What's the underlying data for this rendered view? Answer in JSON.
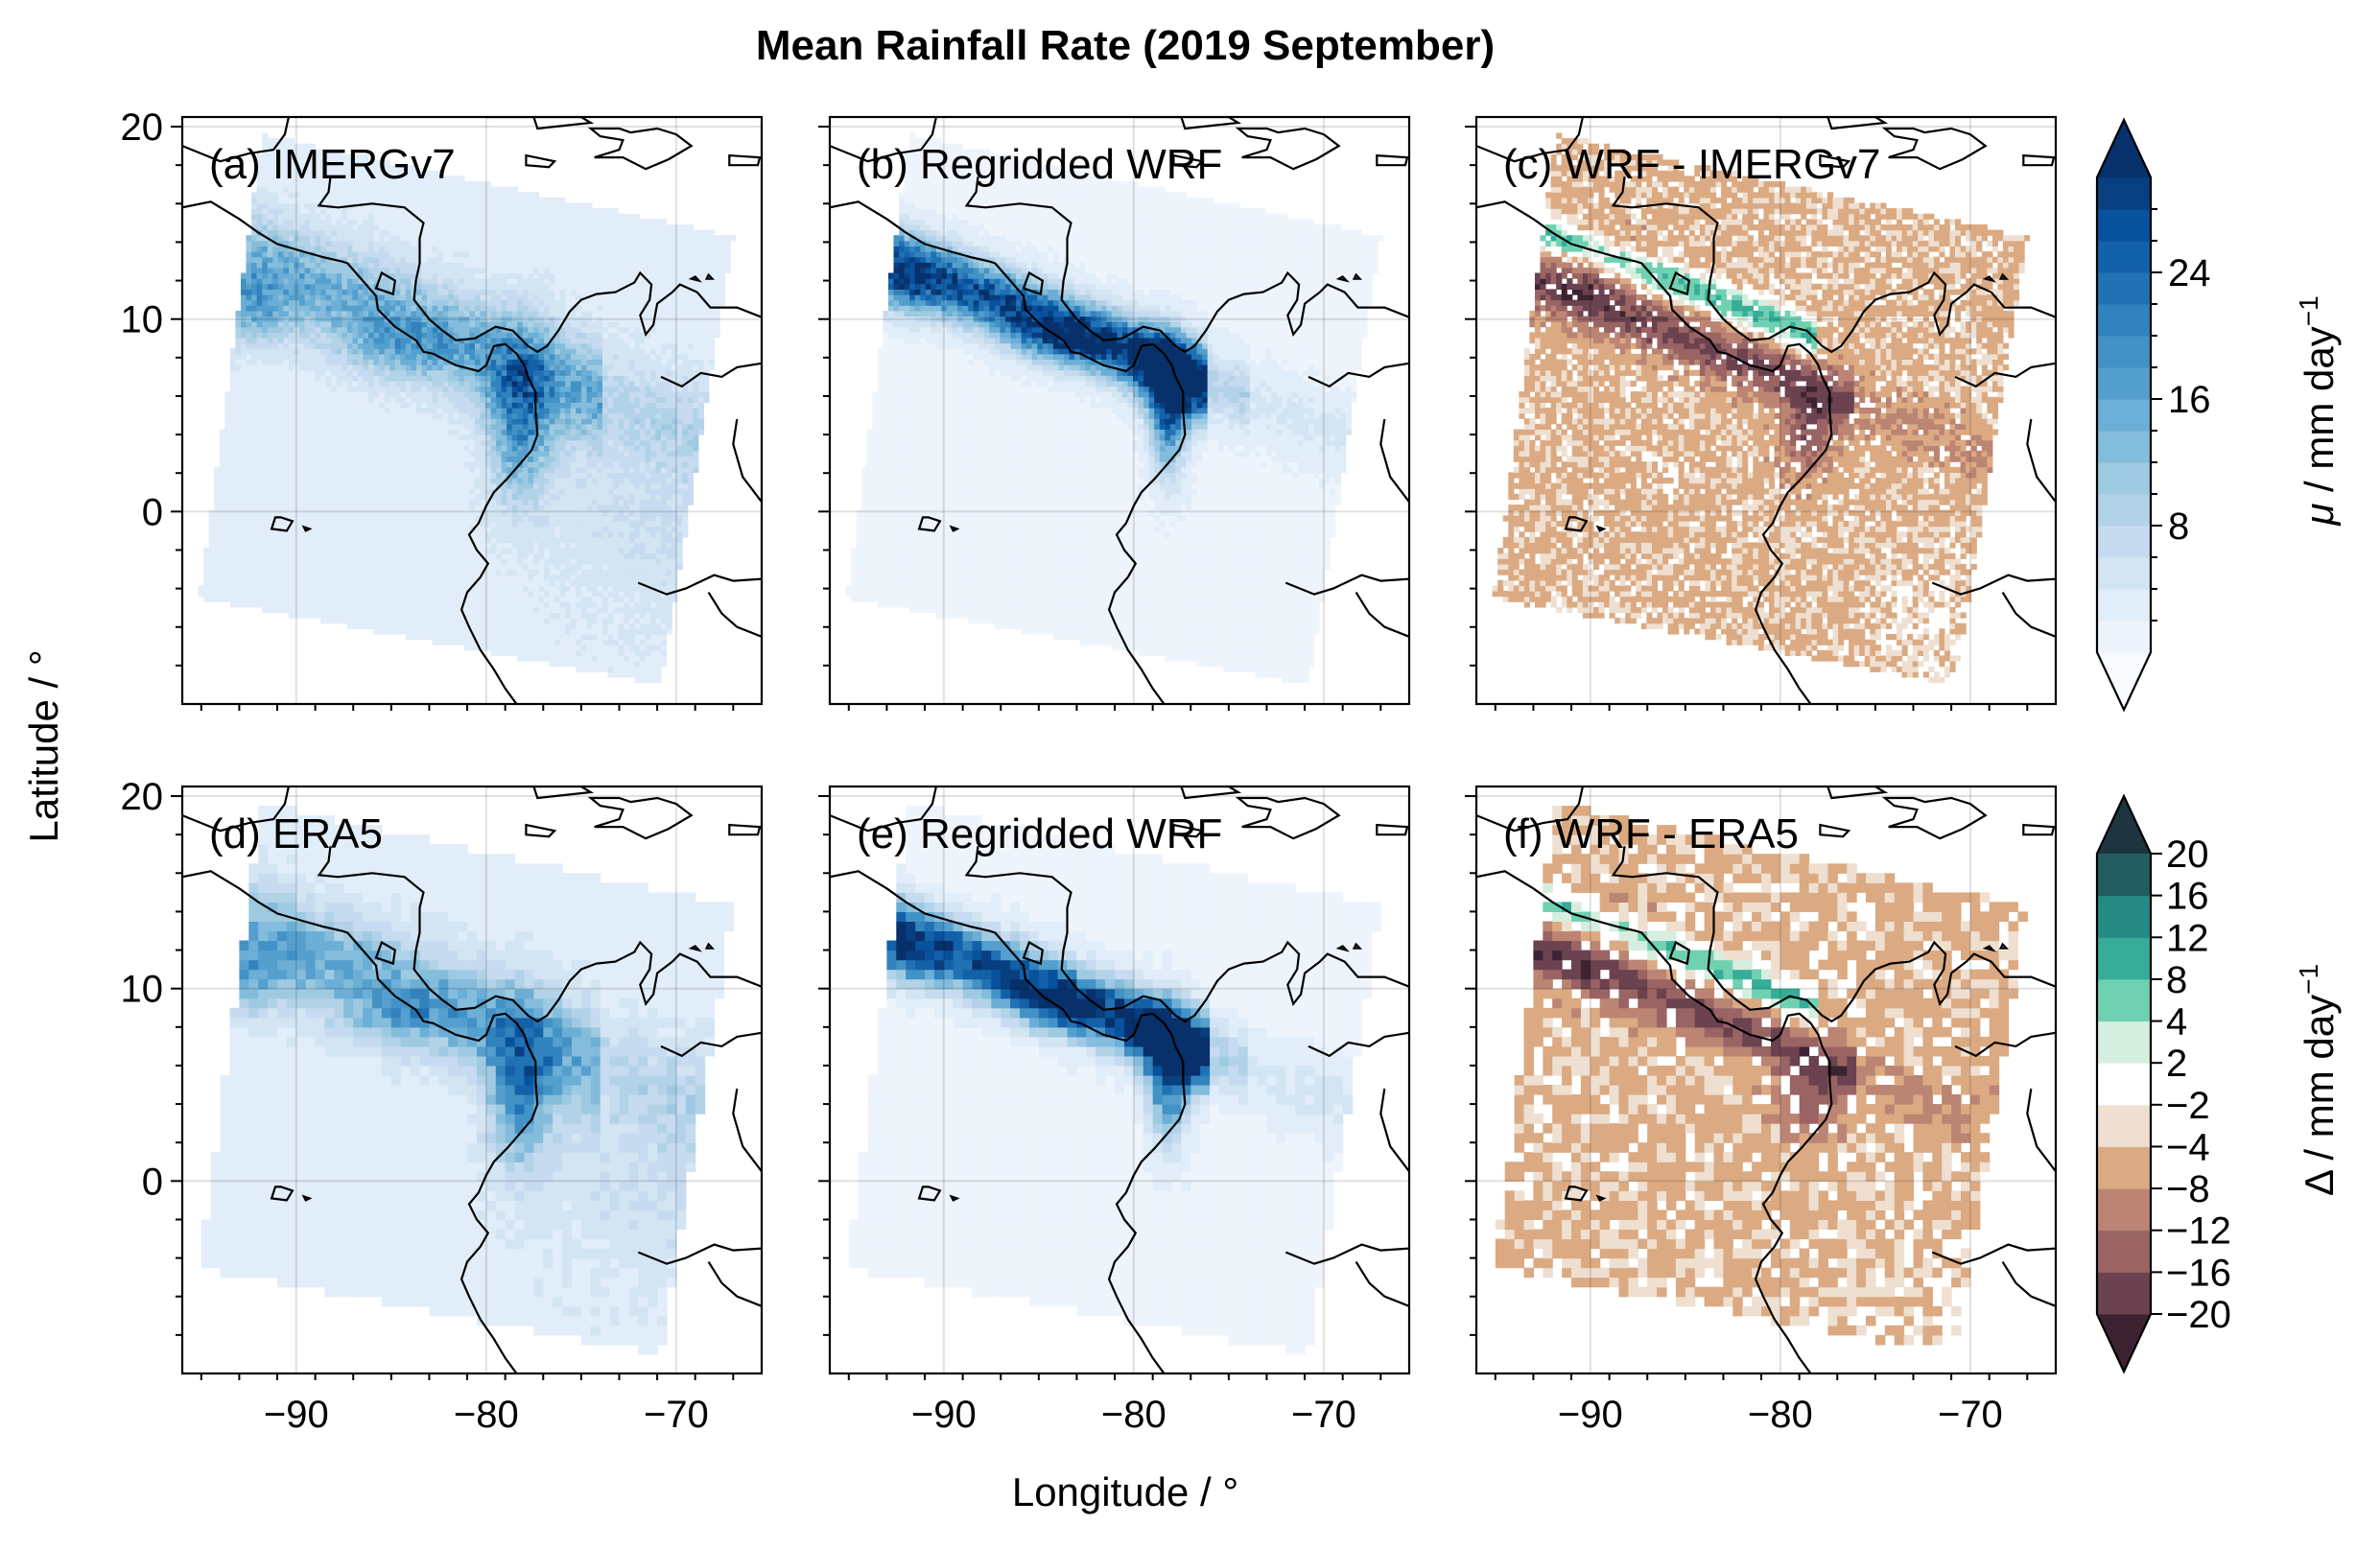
{
  "figure": {
    "title": "Mean Rainfall Rate (2019 September)",
    "xlabel": "Longitude / °",
    "ylabel": "Latitude / °"
  },
  "chart_data": {
    "type": "heatmap",
    "title": "Mean Rainfall Rate (2019 September)",
    "xlabel": "Longitude / °",
    "ylabel": "Latitude / °",
    "xlim": [
      -96,
      -65.5
    ],
    "ylim": [
      -10,
      20.5
    ],
    "x_ticks": [
      -90,
      -80,
      -70
    ],
    "x_tick_labels": [
      "−90",
      "−80",
      "−70"
    ],
    "y_ticks": [
      0,
      10,
      20
    ],
    "y_tick_labels": [
      "0",
      "10",
      "20"
    ],
    "grid": true,
    "panels": [
      {
        "label": "(a) IMERGv7",
        "dataset": "IMERGv7",
        "kind": "mean",
        "cmap": "blues",
        "swath": "fine"
      },
      {
        "label": "(b) Regridded WRF",
        "dataset": "Regridded WRF",
        "kind": "mean",
        "cmap": "blues",
        "swath": "fine"
      },
      {
        "label": "(c) WRF - IMERGv7",
        "dataset": "WRF - IMERGv7",
        "kind": "difference",
        "cmap": "diverging",
        "swath": "fine"
      },
      {
        "label": "(d) ERA5",
        "dataset": "ERA5",
        "kind": "mean",
        "cmap": "blues",
        "swath": "coarse"
      },
      {
        "label": "(e) Regridded WRF",
        "dataset": "Regridded WRF",
        "kind": "mean",
        "cmap": "blues",
        "swath": "coarse"
      },
      {
        "label": "(f) WRF - ERA5",
        "dataset": "WRF - ERA5",
        "kind": "difference",
        "cmap": "diverging",
        "swath": "coarse"
      }
    ],
    "colorbars": [
      {
        "label_symbol": "μ",
        "label_rest": " / mm day",
        "label_exp": "−1",
        "min": 0,
        "max": 30,
        "extend": "both",
        "levels": 15,
        "tick_values": [
          8,
          16,
          24
        ],
        "tick_labels": [
          "8",
          "16",
          "24"
        ],
        "colors": [
          "#eef4fb",
          "#e1edf8",
          "#d3e4f3",
          "#c6dbef",
          "#b2d2e8",
          "#9ecae1",
          "#84bcdb",
          "#6baed6",
          "#549fcd",
          "#4292c6",
          "#3182bd",
          "#2171b5",
          "#1361a8",
          "#08519c",
          "#083f80"
        ],
        "extend_colors": [
          "#f7fbff",
          "#08306b"
        ]
      },
      {
        "label_symbol": "Δ",
        "label_rest": " / mm day",
        "label_exp": "−1",
        "boundaries": [
          -20,
          -16,
          -12,
          -8,
          -4,
          -2,
          2,
          4,
          8,
          12,
          16,
          20
        ],
        "tick_labels": [
          "−20",
          "−16",
          "−12",
          "−8",
          "−4",
          "−2",
          "2",
          "4",
          "8",
          "12",
          "16",
          "20"
        ],
        "extend": "both",
        "colors": [
          "#6b424f",
          "#9a6464",
          "#bc8473",
          "#dbaa82",
          "#eedfd0",
          "#ffffff",
          "#d6eee0",
          "#6fd1b2",
          "#36ad98",
          "#248a83",
          "#225d60"
        ],
        "extend_colors": [
          "#3d2331",
          "#1e3540"
        ]
      }
    ]
  }
}
